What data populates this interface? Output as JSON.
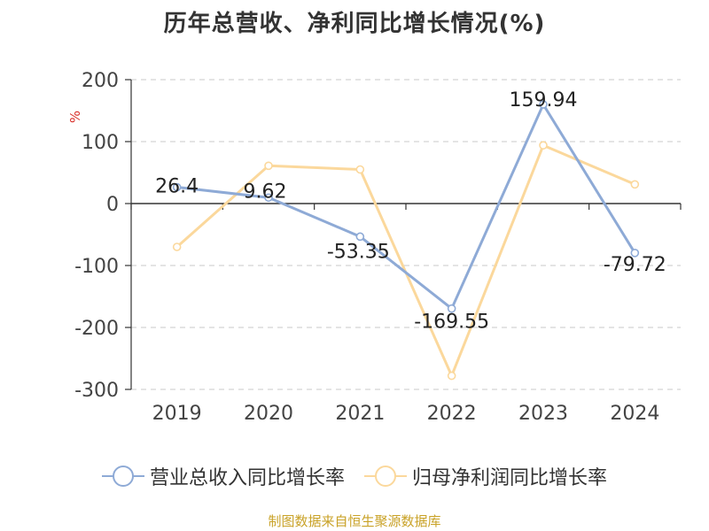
{
  "chart_data": {
    "type": "line",
    "title": "历年总营收、净利同比增长情况(%)",
    "ylabel": "%",
    "xlabel": "",
    "categories": [
      "2019",
      "2020",
      "2021",
      "2022",
      "2023",
      "2024"
    ],
    "ylim": [
      -300,
      200
    ],
    "yticks": [
      200,
      100,
      0,
      -100,
      -200,
      -300
    ],
    "grid": true,
    "legend_position": "bottom",
    "series": [
      {
        "name": "营业总收入同比增长率",
        "color": "#8eaad6",
        "values": [
          26.4,
          9.62,
          -53.35,
          -169.55,
          159.94,
          -79.72
        ],
        "data_labels": [
          "26.4",
          "9.62",
          "-53.35",
          "-169.55",
          "159.94",
          "-79.72"
        ]
      },
      {
        "name": "归母净利润同比增长率",
        "color": "#fbd89c",
        "values": [
          -70,
          61,
          55,
          -278,
          94,
          31
        ],
        "data_labels": []
      }
    ]
  },
  "source": "制图数据来自恒生聚源数据库"
}
